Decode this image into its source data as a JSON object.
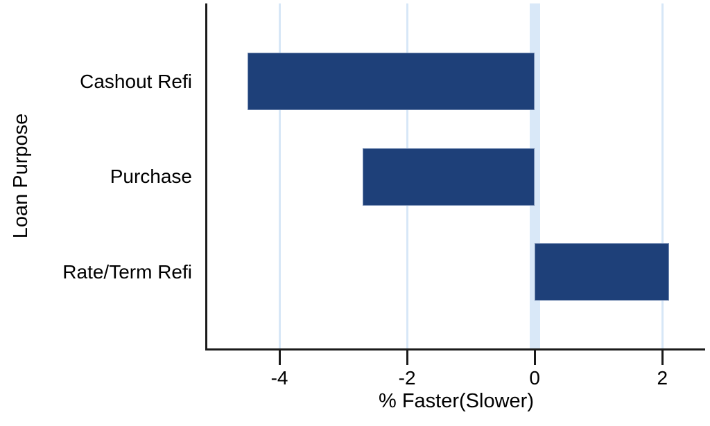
{
  "chart_data": {
    "type": "bar",
    "orientation": "horizontal",
    "title": "",
    "categories": [
      "Cashout Refi",
      "Purchase",
      "Rate/Term Refi"
    ],
    "values": [
      -4.5,
      -2.7,
      2.1
    ],
    "xlabel": "% Faster(Slower)",
    "ylabel": "Loan Purpose",
    "xticks": [
      -4,
      -2,
      0,
      2
    ],
    "xtick_labels": [
      "-4",
      "-2",
      "0",
      "2"
    ],
    "xlim": [
      -5.13,
      2.67
    ],
    "zero_reference_line": 0,
    "grid": true,
    "legend": false,
    "colors": {
      "bar_fill": "#1e4079",
      "bar_border": "#7a90b5",
      "gridline": "#d7e7f7",
      "zero_band": "#d9e8f8",
      "axis": "#1a1a1a",
      "text": "#000000",
      "background": "#ffffff"
    }
  }
}
